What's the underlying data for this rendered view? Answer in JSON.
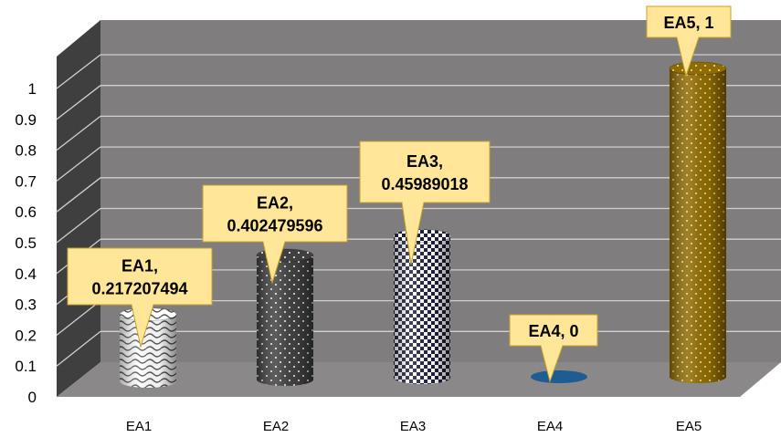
{
  "chart_data": {
    "type": "bar",
    "style": "3d-cylinder",
    "categories": [
      "EA1",
      "EA2",
      "EA3",
      "EA4",
      "EA5"
    ],
    "values": [
      0.217207494,
      0.402479596,
      0.45989018,
      0,
      1
    ],
    "data_labels": [
      [
        "EA1,",
        "0.217207494"
      ],
      [
        "EA2,",
        "0.402479596"
      ],
      [
        "EA3,",
        "0.45989018"
      ],
      [
        "EA4, 0"
      ],
      [
        "EA5, 1"
      ]
    ],
    "ylim": [
      0,
      1
    ],
    "yticks": [
      "0",
      "0.1",
      "0.2",
      "0.3",
      "0.4",
      "0.5",
      "0.6",
      "0.7",
      "0.8",
      "0.9",
      "1"
    ],
    "grid": true,
    "legend": "none",
    "colors": {
      "wall": "#7f7d7d",
      "side_wall": "#3f3f3f",
      "floor": "#8a8888",
      "grid": "#d0d0d0",
      "callout_fill": "#ffe699",
      "callout_stroke": "#c9a227",
      "bar_fills": [
        "#ffffff",
        "#404040",
        "#ffffff",
        "#1f5c94",
        "#8f6b00"
      ],
      "bar_patterns": [
        "wave-on-white",
        "white-dots-on-dark",
        "checker",
        "solid",
        "white-dots-on-gold"
      ]
    }
  }
}
